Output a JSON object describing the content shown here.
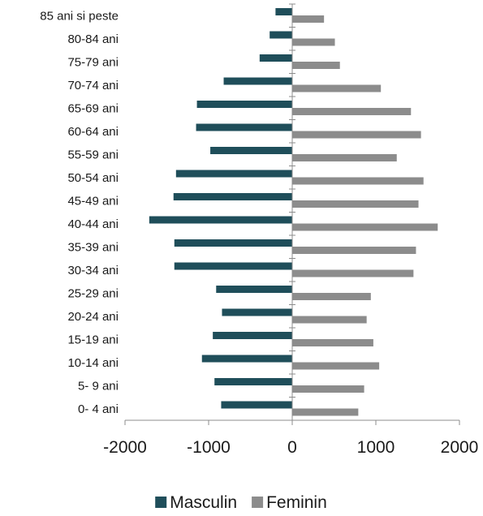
{
  "chart_data": {
    "type": "bar",
    "orientation": "horizontal",
    "categories": [
      "0- 4 ani",
      "5- 9 ani",
      "10-14 ani",
      "15-19 ani",
      "20-24 ani",
      "25-29 ani",
      "30-34 ani",
      "35-39 ani",
      "40-44 ani",
      "45-49 ani",
      "50-54 ani",
      "55-59 ani",
      "60-64 ani",
      "65-69 ani",
      "70-74 ani",
      "75-79 ani",
      "80-84 ani",
      "85 ani si peste"
    ],
    "series": [
      {
        "name": "Masculin",
        "color": "#1f4e5a",
        "values": [
          -850,
          -930,
          -1080,
          -950,
          -840,
          -910,
          -1410,
          -1410,
          -1710,
          -1420,
          -1390,
          -980,
          -1150,
          -1140,
          -820,
          -390,
          -270,
          -200
        ]
      },
      {
        "name": "Feminin",
        "color": "#8c8c8c",
        "values": [
          790,
          860,
          1040,
          970,
          890,
          940,
          1450,
          1480,
          1740,
          1510,
          1570,
          1250,
          1540,
          1420,
          1060,
          570,
          510,
          380
        ]
      }
    ],
    "xlim": [
      -2000,
      2000
    ],
    "xticks": [
      "-2000",
      "-1000",
      "0",
      "1000",
      "2000"
    ],
    "legend_position": "bottom",
    "grid": false
  }
}
